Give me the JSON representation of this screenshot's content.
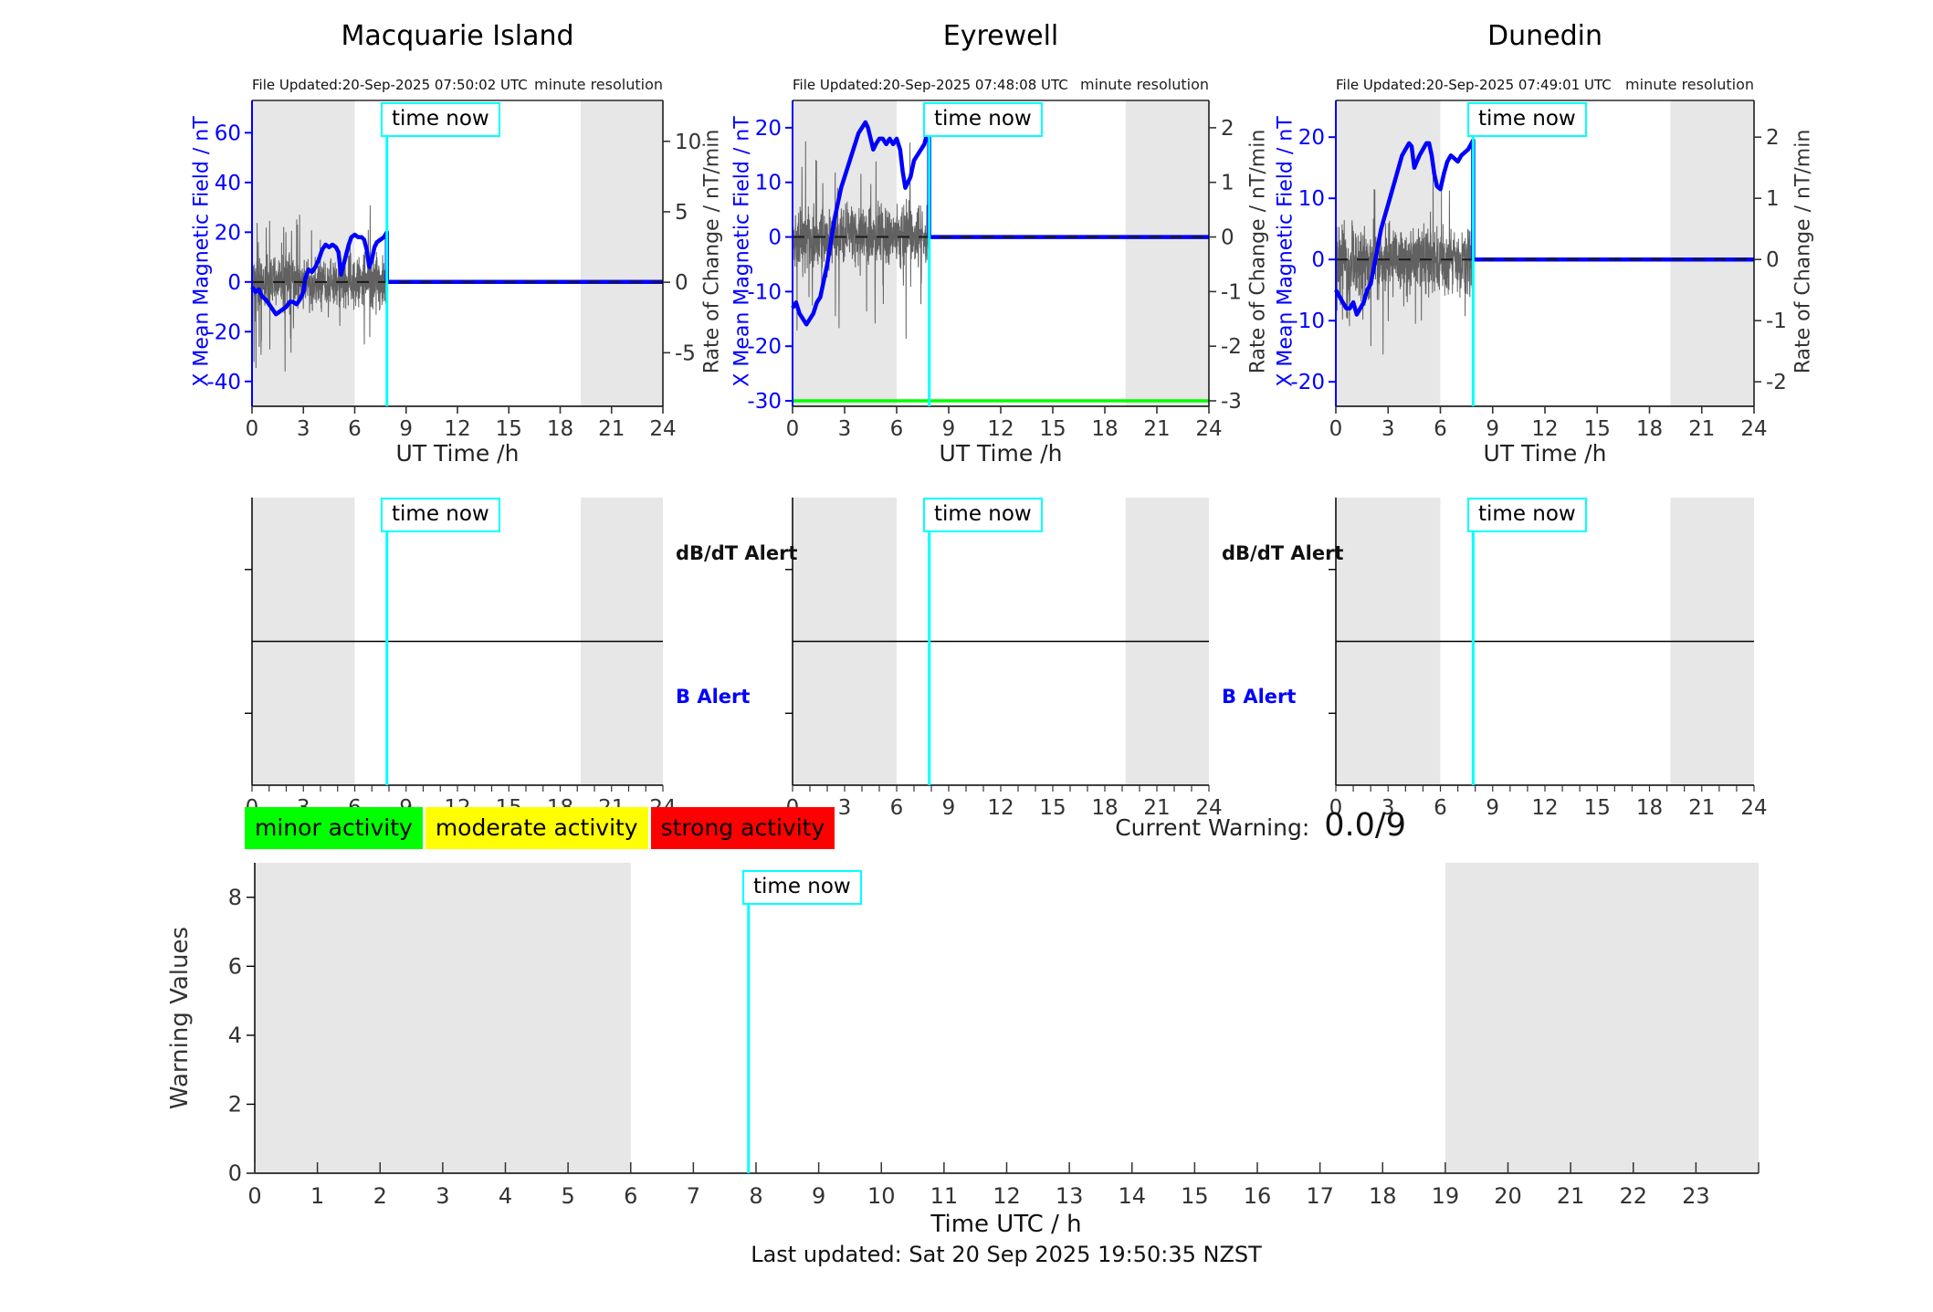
{
  "labels": {
    "time_now": "time now",
    "minute_resolution": "minute resolution",
    "ut_time": "UT Time /h",
    "time_utc": "Time UTC / h",
    "warning_values": "Warning Values",
    "current_warning": "Current Warning:",
    "current_warning_value": "0.0/9",
    "last_updated": "Last updated: Sat 20 Sep 2025 19:50:35 NZST",
    "db_dt_alert": "dB/dT Alert",
    "b_alert": "B Alert",
    "x_mean_label": "X Mean Magnetic Field / nT",
    "rate_label": "Rate of Change / nT/min"
  },
  "colors": {
    "accent_cyan": "#00ffff",
    "series_blue": "#0000ff",
    "threshold_green": "#00ff00",
    "band_gray": "#e7e7e7",
    "noise_gray": "#5a5a5a",
    "dash_black": "#1a1a1a"
  },
  "legend": [
    {
      "label": "minor activity",
      "color": "#00ff00"
    },
    {
      "label": "moderate activity",
      "color": "#ffff00"
    },
    {
      "label": "strong activity",
      "color": "#ff0000"
    }
  ],
  "stations": [
    {
      "title": "Macquarie Island",
      "file_updated": "File Updated:20-Sep-2025 07:50:02 UTC"
    },
    {
      "title": "Eyrewell",
      "file_updated": "File Updated:20-Sep-2025 07:48:08 UTC"
    },
    {
      "title": "Dunedin",
      "file_updated": "File Updated:20-Sep-2025 07:49:01 UTC"
    }
  ],
  "alert_panels": [
    {
      "station": "Macquarie Island",
      "show_labels": true
    },
    {
      "station": "Eyrewell",
      "show_labels": true
    },
    {
      "station": "Dunedin",
      "show_labels": false
    }
  ],
  "chart_data": [
    {
      "type": "line",
      "title": "Macquarie Island",
      "xlabel": "UT Time /h",
      "ylabel_left": "X Mean Magnetic Field / nT",
      "ylabel_right": "Rate of Change / nT/min",
      "xlim": [
        0,
        24
      ],
      "xticks": [
        0,
        3,
        6,
        9,
        12,
        15,
        18,
        21,
        24
      ],
      "ylim_left": [
        -50,
        73
      ],
      "yticks_left": [
        60,
        40,
        20,
        0,
        -20,
        -40
      ],
      "ylim_right": [
        -8.8,
        12.9
      ],
      "yticks_right": [
        10,
        5,
        0,
        -5
      ],
      "shaded_hours": [
        [
          0,
          6
        ],
        [
          19.2,
          24
        ]
      ],
      "time_now": 7.88,
      "flat_after_time_now": 0,
      "alerts": {
        "db_dt": [],
        "b": []
      },
      "series": [
        {
          "name": "X mean magnetic field (1-min)",
          "color": "#0000ff",
          "points": [
            [
              0,
              -2
            ],
            [
              0.2,
              -4
            ],
            [
              0.4,
              -3
            ],
            [
              0.6,
              -6
            ],
            [
              0.8,
              -7
            ],
            [
              1.0,
              -9
            ],
            [
              1.2,
              -11
            ],
            [
              1.4,
              -13
            ],
            [
              1.6,
              -12
            ],
            [
              1.8,
              -11
            ],
            [
              2.0,
              -10
            ],
            [
              2.2,
              -8
            ],
            [
              2.4,
              -8
            ],
            [
              2.6,
              -9
            ],
            [
              2.8,
              -7
            ],
            [
              3.0,
              -4
            ],
            [
              3.1,
              1
            ],
            [
              3.3,
              5
            ],
            [
              3.5,
              4
            ],
            [
              3.7,
              6
            ],
            [
              3.9,
              9
            ],
            [
              4.1,
              13
            ],
            [
              4.3,
              15
            ],
            [
              4.5,
              14
            ],
            [
              4.7,
              15
            ],
            [
              4.9,
              14
            ],
            [
              5.05,
              12
            ],
            [
              5.2,
              3
            ],
            [
              5.35,
              7
            ],
            [
              5.5,
              11
            ],
            [
              5.65,
              15
            ],
            [
              5.8,
              18
            ],
            [
              6.0,
              19
            ],
            [
              6.2,
              18
            ],
            [
              6.4,
              18
            ],
            [
              6.55,
              17
            ],
            [
              6.7,
              13
            ],
            [
              6.85,
              6
            ],
            [
              7.0,
              9
            ],
            [
              7.15,
              14
            ],
            [
              7.3,
              16
            ],
            [
              7.5,
              17
            ],
            [
              7.7,
              18
            ],
            [
              7.88,
              20
            ]
          ]
        },
        {
          "name": "rate of change (minute noise)",
          "color": "#5a5a5a",
          "style": "noise",
          "amplitude_nT": {
            "base": 10,
            "spike": 30,
            "spike_until": 3.0
          }
        },
        {
          "name": "zero reference",
          "style": "dashed",
          "value": 0
        }
      ]
    },
    {
      "type": "line",
      "title": "Eyrewell",
      "xlabel": "UT Time /h",
      "ylabel_left": "X Mean Magnetic Field / nT",
      "ylabel_right": "Rate of Change / nT/min",
      "xlim": [
        0,
        24
      ],
      "xticks": [
        0,
        3,
        6,
        9,
        12,
        15,
        18,
        21,
        24
      ],
      "ylim_left": [
        -31,
        25
      ],
      "yticks_left": [
        20,
        10,
        0,
        -10,
        -20,
        -30
      ],
      "ylim_right": [
        -3.1,
        2.5
      ],
      "yticks_right": [
        2,
        1,
        0,
        -1,
        -2,
        -3
      ],
      "shaded_hours": [
        [
          0,
          6
        ],
        [
          19.2,
          24
        ]
      ],
      "time_now": 7.88,
      "flat_after_time_now": 0,
      "alerts": {
        "db_dt": [],
        "b": []
      },
      "series": [
        {
          "name": "X mean magnetic field (1-min)",
          "color": "#0000ff",
          "points": [
            [
              0,
              -13
            ],
            [
              0.2,
              -12
            ],
            [
              0.4,
              -14
            ],
            [
              0.6,
              -15
            ],
            [
              0.8,
              -16
            ],
            [
              1.0,
              -15
            ],
            [
              1.2,
              -14
            ],
            [
              1.4,
              -12
            ],
            [
              1.6,
              -11
            ],
            [
              1.8,
              -8
            ],
            [
              2.0,
              -5
            ],
            [
              2.2,
              -1
            ],
            [
              2.4,
              3
            ],
            [
              2.6,
              6
            ],
            [
              2.8,
              9
            ],
            [
              3.0,
              11
            ],
            [
              3.2,
              13
            ],
            [
              3.4,
              15
            ],
            [
              3.6,
              17
            ],
            [
              3.8,
              19
            ],
            [
              4.0,
              20
            ],
            [
              4.2,
              21
            ],
            [
              4.35,
              20
            ],
            [
              4.5,
              18
            ],
            [
              4.65,
              16
            ],
            [
              4.8,
              17
            ],
            [
              5.0,
              18
            ],
            [
              5.2,
              18
            ],
            [
              5.4,
              17
            ],
            [
              5.6,
              18
            ],
            [
              5.8,
              17
            ],
            [
              6.0,
              18
            ],
            [
              6.2,
              16
            ],
            [
              6.35,
              12
            ],
            [
              6.5,
              9
            ],
            [
              6.65,
              10
            ],
            [
              6.8,
              11
            ],
            [
              7.0,
              14
            ],
            [
              7.2,
              15
            ],
            [
              7.4,
              16
            ],
            [
              7.6,
              17
            ],
            [
              7.75,
              19
            ],
            [
              7.88,
              21
            ]
          ]
        },
        {
          "name": "rate of change (minute noise)",
          "color": "#5a5a5a",
          "style": "noise",
          "amplitude_nT": {
            "base": 5,
            "spike": 18,
            "spike_until": 2.6
          }
        },
        {
          "name": "alert threshold",
          "style": "hline",
          "color": "#00ff00",
          "value": -30
        },
        {
          "name": "zero reference",
          "style": "dashed",
          "value": 0
        }
      ]
    },
    {
      "type": "line",
      "title": "Dunedin",
      "xlabel": "UT Time /h",
      "ylabel_left": "X Mean Magnetic Field / nT",
      "ylabel_right": "Rate of Change / nT/min",
      "xlim": [
        0,
        24
      ],
      "xticks": [
        0,
        3,
        6,
        9,
        12,
        15,
        18,
        21,
        24
      ],
      "ylim_left": [
        -24,
        26
      ],
      "yticks_left": [
        20,
        10,
        0,
        -10,
        -20
      ],
      "ylim_right": [
        -2.4,
        2.6
      ],
      "yticks_right": [
        2,
        1,
        0,
        -1,
        -2
      ],
      "shaded_hours": [
        [
          0,
          6
        ],
        [
          19.2,
          24
        ]
      ],
      "time_now": 7.88,
      "flat_after_time_now": 0,
      "alerts": {
        "db_dt": [],
        "b": []
      },
      "series": [
        {
          "name": "X mean magnetic field (1-min)",
          "color": "#0000ff",
          "points": [
            [
              0,
              -5
            ],
            [
              0.2,
              -6
            ],
            [
              0.4,
              -7
            ],
            [
              0.6,
              -8
            ],
            [
              0.8,
              -8
            ],
            [
              1.0,
              -7
            ],
            [
              1.2,
              -9
            ],
            [
              1.4,
              -8
            ],
            [
              1.6,
              -7
            ],
            [
              1.8,
              -5
            ],
            [
              2.0,
              -4
            ],
            [
              2.2,
              -1
            ],
            [
              2.4,
              2
            ],
            [
              2.6,
              5
            ],
            [
              2.8,
              7
            ],
            [
              3.0,
              9
            ],
            [
              3.2,
              11
            ],
            [
              3.4,
              13
            ],
            [
              3.6,
              15
            ],
            [
              3.8,
              17
            ],
            [
              4.0,
              18
            ],
            [
              4.2,
              19
            ],
            [
              4.35,
              18.5
            ],
            [
              4.5,
              15
            ],
            [
              4.65,
              16
            ],
            [
              4.8,
              17
            ],
            [
              5.0,
              18
            ],
            [
              5.2,
              19
            ],
            [
              5.35,
              19
            ],
            [
              5.5,
              17
            ],
            [
              5.65,
              14
            ],
            [
              5.8,
              12
            ],
            [
              6.0,
              11.5
            ],
            [
              6.2,
              14
            ],
            [
              6.4,
              16
            ],
            [
              6.6,
              17
            ],
            [
              6.8,
              16.5
            ],
            [
              7.0,
              16
            ],
            [
              7.2,
              17
            ],
            [
              7.4,
              17.5
            ],
            [
              7.6,
              18
            ],
            [
              7.88,
              19.5
            ]
          ]
        },
        {
          "name": "rate of change (minute noise)",
          "color": "#5a5a5a",
          "style": "noise",
          "amplitude_nT": {
            "base": 5,
            "spike": 12,
            "spike_until": 2.6
          }
        },
        {
          "name": "zero reference",
          "style": "dashed",
          "value": 0
        }
      ]
    },
    {
      "type": "line",
      "title": "Warning Values",
      "xlabel": "Time UTC / h",
      "ylabel": "Warning Values",
      "xlim": [
        0,
        24
      ],
      "xticks": [
        0,
        1,
        2,
        3,
        4,
        5,
        6,
        7,
        8,
        9,
        10,
        11,
        12,
        13,
        14,
        15,
        16,
        17,
        18,
        19,
        20,
        21,
        22,
        23
      ],
      "ylim": [
        0,
        9
      ],
      "yticks": [
        0,
        2,
        4,
        6,
        8
      ],
      "shaded_hours": [
        [
          0,
          6
        ],
        [
          19,
          24
        ]
      ],
      "time_now": 7.88,
      "current_warning": 0.0,
      "warning_scale_max": 9,
      "series": []
    }
  ]
}
